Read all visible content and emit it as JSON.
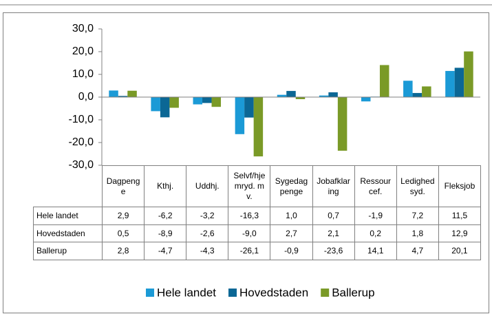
{
  "chart_data": {
    "type": "bar",
    "categories": [
      "Dagpenge",
      "Kthj.",
      "Uddhj.",
      "Selvf/hjemryd. mv.",
      "Sygedagpenge",
      "Jobafklaring",
      "Ressourcef.",
      "Ledighedsyd.",
      "Fleksjob"
    ],
    "series": [
      {
        "name": "Hele landet",
        "color": "#1b9ad6",
        "values": [
          2.9,
          -6.2,
          -3.2,
          -16.3,
          1.0,
          0.7,
          -1.9,
          7.2,
          11.5
        ],
        "value_labels": [
          "2,9",
          "-6,2",
          "-3,2",
          "-16,3",
          "1,0",
          "0,7",
          "-1,9",
          "7,2",
          "11,5"
        ]
      },
      {
        "name": "Hovedstaden",
        "color": "#0b6795",
        "values": [
          0.5,
          -8.9,
          -2.6,
          -9.0,
          2.7,
          2.1,
          0.2,
          1.8,
          12.9
        ],
        "value_labels": [
          "0,5",
          "-8,9",
          "-2,6",
          "-9,0",
          "2,7",
          "2,1",
          "0,2",
          "1,8",
          "12,9"
        ]
      },
      {
        "name": "Ballerup",
        "color": "#7a9a27",
        "values": [
          2.8,
          -4.7,
          -4.3,
          -26.1,
          -0.9,
          -23.6,
          14.1,
          4.7,
          20.1
        ],
        "value_labels": [
          "2,8",
          "-4,7",
          "-4,3",
          "-26,1",
          "-0,9",
          "-23,6",
          "14,1",
          "4,7",
          "20,1"
        ]
      }
    ],
    "ylim": [
      -30,
      30
    ],
    "yticks": [
      {
        "value": -30,
        "label": "-30,0"
      },
      {
        "value": -20,
        "label": "-20,0"
      },
      {
        "value": -10,
        "label": "-10,0"
      },
      {
        "value": 0,
        "label": "0,0"
      },
      {
        "value": 10,
        "label": "10,0"
      },
      {
        "value": 20,
        "label": "20,0"
      },
      {
        "value": 30,
        "label": "30,0"
      }
    ],
    "legend": "bottom"
  }
}
